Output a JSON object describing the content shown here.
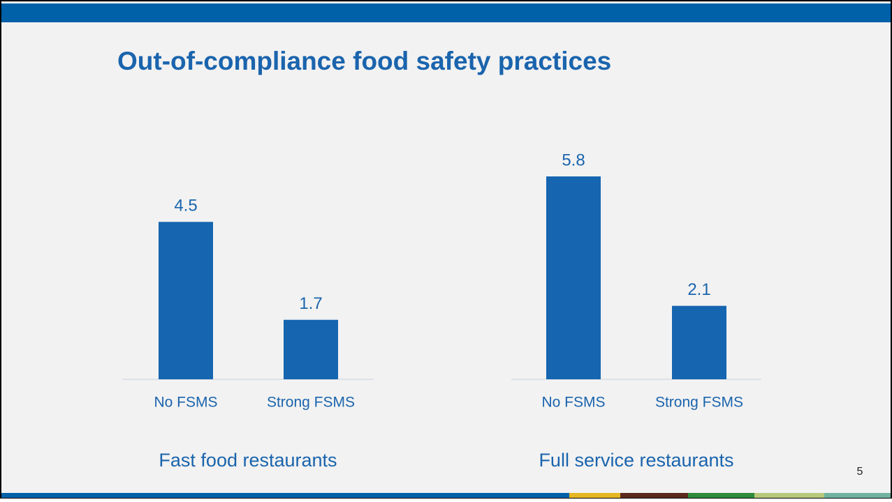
{
  "title": "Out-of-compliance food safety practices",
  "page_number": 5,
  "chart_data": [
    {
      "type": "bar",
      "xlabel": "Fast food restaurants",
      "categories": [
        "No FSMS",
        "Strong FSMS"
      ],
      "values": [
        4.5,
        1.7
      ],
      "color": "#1565b0",
      "ylim": [
        0,
        6
      ]
    },
    {
      "type": "bar",
      "xlabel": "Full service restaurants",
      "categories": [
        "No FSMS",
        "Strong FSMS"
      ],
      "values": [
        5.8,
        2.1
      ],
      "color": "#1565b0",
      "ylim": [
        0,
        6
      ]
    }
  ]
}
